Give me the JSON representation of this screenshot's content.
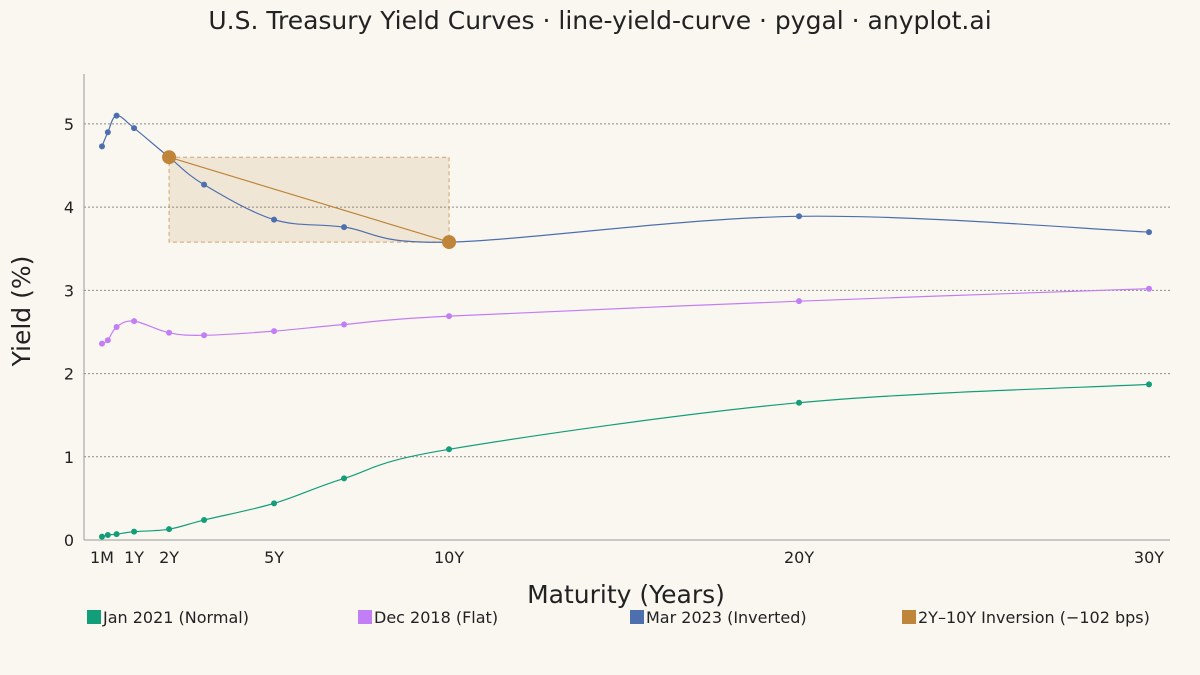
{
  "chart_data": {
    "type": "line",
    "title": "U.S. Treasury Yield Curves · line-yield-curve · pygal · anyplot.ai",
    "xlabel": "Maturity (Years)",
    "ylabel": "Yield (%)",
    "ylim": [
      0,
      5.6
    ],
    "xlim": [
      0,
      30.6
    ],
    "grid": "horizontal",
    "legend_position": "bottom",
    "y_ticks": [
      {
        "value": 0,
        "label": "0"
      },
      {
        "value": 1,
        "label": "1"
      },
      {
        "value": 2,
        "label": "2"
      },
      {
        "value": 3,
        "label": "3"
      },
      {
        "value": 4,
        "label": "4"
      },
      {
        "value": 5,
        "label": "5"
      }
    ],
    "x_ticks": [
      {
        "value": 0.0833,
        "label": "1M"
      },
      {
        "value": 1,
        "label": "1Y"
      },
      {
        "value": 2,
        "label": "2Y"
      },
      {
        "value": 5,
        "label": "5Y"
      },
      {
        "value": 10,
        "label": "10Y"
      },
      {
        "value": 20,
        "label": "20Y"
      },
      {
        "value": 30,
        "label": "30Y"
      }
    ],
    "series": [
      {
        "name": "Jan 2021 (Normal)",
        "color": "#139e7a",
        "x": [
          0.0833,
          0.25,
          0.5,
          1,
          2,
          3,
          5,
          7,
          10,
          20,
          30
        ],
        "y": [
          0.04,
          0.06,
          0.07,
          0.1,
          0.13,
          0.24,
          0.44,
          0.74,
          1.09,
          1.65,
          1.87
        ]
      },
      {
        "name": "Dec 2018 (Flat)",
        "color": "#c27ef5",
        "x": [
          0.0833,
          0.25,
          0.5,
          1,
          2,
          3,
          5,
          7,
          10,
          20,
          30
        ],
        "y": [
          2.36,
          2.4,
          2.56,
          2.63,
          2.49,
          2.46,
          2.51,
          2.59,
          2.69,
          2.87,
          3.02
        ]
      },
      {
        "name": "Mar 2023 (Inverted)",
        "color": "#4e6fae",
        "x": [
          0.0833,
          0.25,
          0.5,
          1,
          2,
          3,
          5,
          7,
          10,
          20,
          30
        ],
        "y": [
          4.73,
          4.9,
          5.1,
          4.95,
          4.6,
          4.27,
          3.85,
          3.76,
          3.58,
          3.89,
          3.7
        ]
      }
    ],
    "annotation": {
      "name": "2Y–10Y Inversion (−102 bps)",
      "color": "#bf853a",
      "x": [
        2,
        10
      ],
      "y": [
        4.6,
        3.58
      ]
    }
  }
}
